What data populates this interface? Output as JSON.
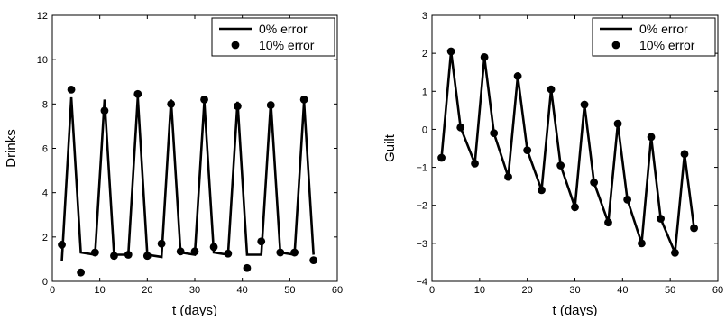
{
  "chart_data": [
    {
      "type": "line",
      "xlabel": "t (days)",
      "ylabel": "Drinks",
      "xlim": [
        0,
        60
      ],
      "ylim": [
        0,
        12
      ],
      "xticks": [
        "0",
        "10",
        "20",
        "30",
        "40",
        "50",
        "60"
      ],
      "yticks": [
        "0",
        "2",
        "4",
        "6",
        "8",
        "10",
        "12"
      ],
      "legend_position": "top-right",
      "grid": false,
      "series": [
        {
          "name": "0% error",
          "style": "line",
          "color": "#000000",
          "x": [
            2,
            4,
            6,
            9,
            11,
            13,
            16,
            18,
            20,
            23,
            25,
            27,
            30,
            32,
            34,
            37,
            39,
            41,
            44,
            46,
            48,
            51,
            53,
            55
          ],
          "y": [
            0.9,
            8.3,
            1.3,
            1.2,
            8.2,
            1.2,
            1.2,
            8.3,
            1.2,
            1.1,
            8.2,
            1.3,
            1.2,
            8.1,
            1.3,
            1.2,
            8.1,
            1.2,
            1.2,
            8.1,
            1.3,
            1.2,
            8.1,
            1.2
          ]
        },
        {
          "name": "10% error",
          "style": "markers",
          "color": "#000000",
          "x": [
            2,
            4,
            6,
            9,
            11,
            13,
            16,
            18,
            20,
            23,
            25,
            27,
            30,
            32,
            34,
            37,
            39,
            41,
            44,
            46,
            48,
            51,
            53,
            55
          ],
          "y": [
            1.65,
            8.65,
            0.4,
            1.3,
            7.7,
            1.15,
            1.2,
            8.45,
            1.15,
            1.7,
            8.0,
            1.35,
            1.35,
            8.2,
            1.55,
            1.25,
            7.9,
            0.6,
            1.8,
            7.95,
            1.3,
            1.3,
            8.2,
            0.95
          ]
        }
      ]
    },
    {
      "type": "line",
      "xlabel": "t (days)",
      "ylabel": "Guilt",
      "xlim": [
        0,
        60
      ],
      "ylim": [
        -4,
        3
      ],
      "xticks": [
        "0",
        "10",
        "20",
        "30",
        "40",
        "50",
        "60"
      ],
      "yticks": [
        "−4",
        "−3",
        "−2",
        "−1",
        "0",
        "1",
        "2",
        "3"
      ],
      "legend_position": "top-right",
      "grid": false,
      "series": [
        {
          "name": "0% error",
          "style": "line",
          "color": "#000000",
          "x": [
            2,
            4,
            6,
            9,
            11,
            13,
            16,
            18,
            20,
            23,
            25,
            27,
            30,
            32,
            34,
            37,
            39,
            41,
            44,
            46,
            48,
            51,
            53,
            55
          ],
          "y": [
            -0.75,
            2.05,
            0.05,
            -0.9,
            1.9,
            -0.1,
            -1.25,
            1.4,
            -0.55,
            -1.6,
            1.05,
            -0.95,
            -2.05,
            0.65,
            -1.4,
            -2.45,
            0.15,
            -1.85,
            -3.0,
            -0.2,
            -2.35,
            -3.25,
            -0.65,
            -2.6
          ]
        },
        {
          "name": "10% error",
          "style": "markers",
          "color": "#000000",
          "x": [
            2,
            4,
            6,
            9,
            11,
            13,
            16,
            18,
            20,
            23,
            25,
            27,
            30,
            32,
            34,
            37,
            39,
            41,
            44,
            46,
            48,
            51,
            53,
            55
          ],
          "y": [
            -0.75,
            2.05,
            0.05,
            -0.9,
            1.9,
            -0.1,
            -1.25,
            1.4,
            -0.55,
            -1.6,
            1.05,
            -0.95,
            -2.05,
            0.65,
            -1.4,
            -2.45,
            0.15,
            -1.85,
            -3.0,
            -0.2,
            -2.35,
            -3.25,
            -0.65,
            -2.6
          ]
        }
      ]
    }
  ]
}
